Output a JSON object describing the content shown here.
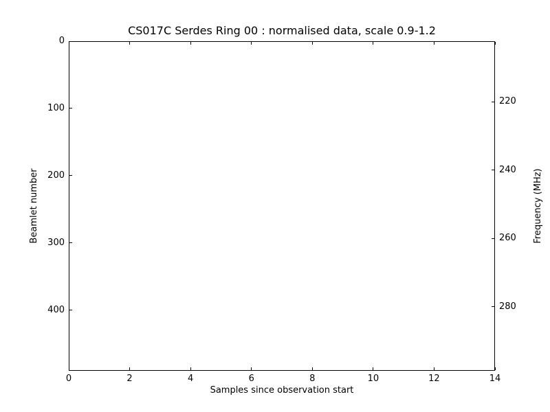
{
  "figure": {
    "background": "#ffffff",
    "foreground": "#000000"
  },
  "chart_data": {
    "type": "heatmap",
    "title": "CS017C Serdes Ring 00 : normalised data, scale 0.9-1.2",
    "xlabel": "Samples since observation start",
    "ylabel_left": "Beamlet number",
    "ylabel_right": "Frequency (MHz)",
    "xlim": [
      0,
      14
    ],
    "ylim_left_top_to_bottom": [
      0,
      490
    ],
    "ylim_right_top_to_bottom": [
      202.3,
      298.7
    ],
    "x_ticks": [
      0,
      2,
      4,
      6,
      8,
      10,
      12,
      14
    ],
    "y_ticks_left": [
      0,
      100,
      200,
      300,
      400
    ],
    "y_ticks_right": [
      220,
      240,
      260,
      280
    ],
    "grid": false,
    "legend": null,
    "scale_range": [
      0.9,
      1.2
    ],
    "values": [],
    "plot_area_empty": true
  }
}
